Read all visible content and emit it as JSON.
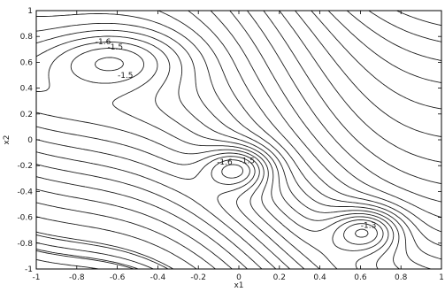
{
  "chart_data": {
    "type": "contour",
    "title": "",
    "xlabel": "x1",
    "ylabel": "x2",
    "xlim": [
      -1,
      1
    ],
    "ylim": [
      -1,
      1
    ],
    "xticks": [
      "-1",
      "-0.8",
      "-0.6",
      "-0.4",
      "-0.2",
      "0",
      "0.2",
      "0.4",
      "0.6",
      "0.8",
      "1"
    ],
    "yticks": [
      "1",
      "0.8",
      "0.6",
      "0.4",
      "0.2",
      "0",
      "-0.2",
      "-0.4",
      "-0.6",
      "-0.8",
      "-1"
    ],
    "xtick_values": [
      -1,
      -0.8,
      -0.6,
      -0.4,
      -0.2,
      0,
      0.2,
      0.4,
      0.6,
      0.8,
      1
    ],
    "ytick_values": [
      1,
      0.8,
      0.6,
      0.4,
      0.2,
      0,
      -0.2,
      -0.4,
      -0.6,
      -0.8,
      -1
    ],
    "minima": [
      {
        "x": -0.62,
        "y": 0.62
      },
      {
        "x": 0.0,
        "y": -0.22
      },
      {
        "x": 0.63,
        "y": -0.7
      }
    ],
    "contour_labels": [
      {
        "text": "-1.6",
        "x": -0.67,
        "y": 0.76
      },
      {
        "text": "-1.5",
        "x": -0.61,
        "y": 0.72
      },
      {
        "text": "-1.5",
        "x": -0.56,
        "y": 0.5
      },
      {
        "text": "-1.6",
        "x": -0.07,
        "y": -0.17
      },
      {
        "text": "-1.5",
        "x": 0.04,
        "y": -0.16
      },
      {
        "text": "-1.3",
        "x": 0.64,
        "y": -0.66
      }
    ],
    "grid": false
  }
}
